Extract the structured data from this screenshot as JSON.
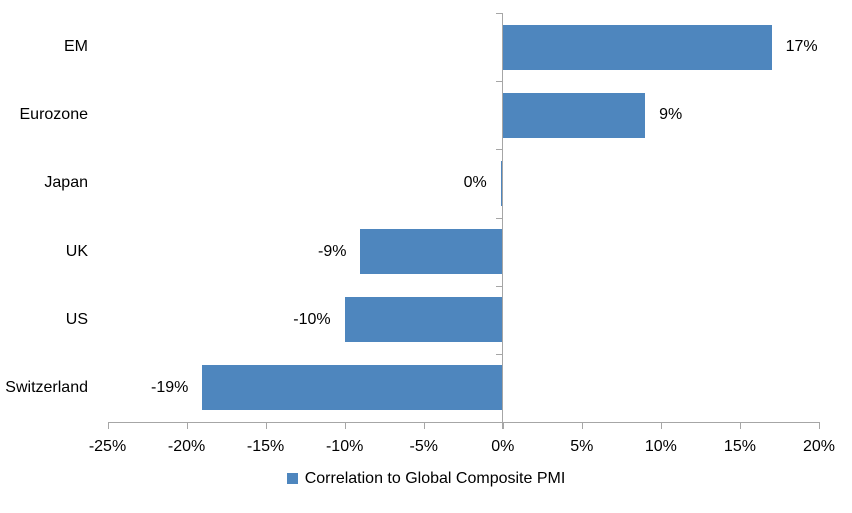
{
  "chart_data": {
    "type": "bar",
    "orientation": "horizontal",
    "title": "",
    "xlabel": "",
    "ylabel": "",
    "categories": [
      "EM",
      "Eurozone",
      "Japan",
      "UK",
      "US",
      "Switzerland"
    ],
    "values": [
      17,
      9,
      0,
      -9,
      -10,
      -19
    ],
    "value_labels": [
      "17%",
      "9%",
      "0%",
      "-9%",
      "-10%",
      "-19%"
    ],
    "series": [
      {
        "name": "Correlation to Global Composite PMI",
        "values": [
          17,
          9,
          0,
          -9,
          -10,
          -19
        ]
      }
    ],
    "xlim": [
      -25,
      20
    ],
    "x_ticks": [
      -25,
      -20,
      -15,
      -10,
      -5,
      0,
      5,
      10,
      15,
      20
    ],
    "x_tick_labels": [
      "-25%",
      "-20%",
      "-15%",
      "-10%",
      "-5%",
      "0%",
      "5%",
      "10%",
      "15%",
      "20%"
    ],
    "grid": false,
    "legend_position": "bottom-center",
    "colors": {
      "bar": "#4E86BE",
      "axis": "#A6A6A6",
      "text": "#000000",
      "background": "#FFFFFF"
    }
  },
  "legend": {
    "label": "Correlation to Global Composite PMI"
  }
}
